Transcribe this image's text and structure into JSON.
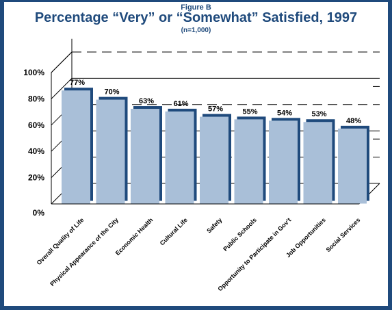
{
  "figure_label": "Figure B",
  "title": "Percentage “Very” or “Somewhat” Satisfied, 1997",
  "subtitle": "(n=1,000)",
  "colors": {
    "frame": "#1f4a7c",
    "bar": "#a9bfd8",
    "bar_shadow": "#1f4a7c"
  },
  "chart_data": {
    "type": "bar",
    "categories": [
      "Overall Quality of Life",
      "Physical Appearance of the City",
      "Economic Health",
      "Cultural Life",
      "Safety",
      "Public Schools",
      "Opportunity to Participate in Gov’t",
      "Job Opportunities",
      "Social Services"
    ],
    "values": [
      77,
      70,
      63,
      61,
      57,
      55,
      54,
      53,
      48
    ],
    "value_labels": [
      "77%",
      "70%",
      "63%",
      "61%",
      "57%",
      "55%",
      "54%",
      "53%",
      "48%"
    ],
    "y_tick_labels": [
      "0%",
      "20%",
      "40%",
      "60%",
      "80%",
      "100%"
    ],
    "y_ticks": [
      0,
      20,
      40,
      60,
      80,
      100
    ],
    "ylim": [
      0,
      100
    ],
    "grid": "dashed horizontal",
    "style": "3d"
  }
}
